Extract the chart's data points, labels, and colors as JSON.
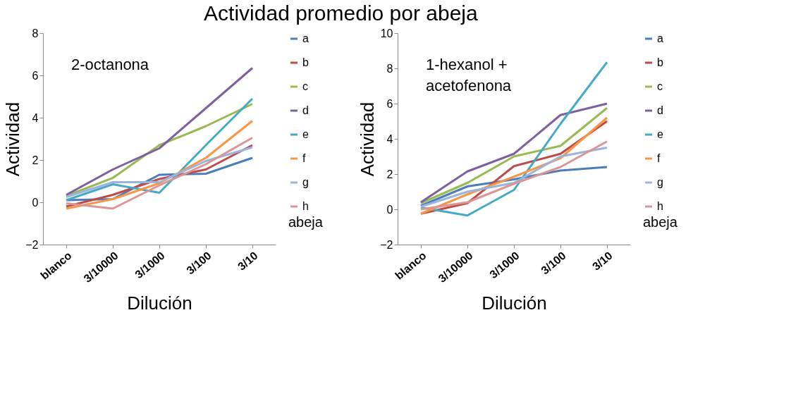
{
  "chart_data": [
    {
      "type": "line",
      "title": "Actividad promedio por abeja",
      "xlabel": "Dilución",
      "ylabel": "Actividad",
      "legend_title": "abeja",
      "annotations": [
        "2-octanona"
      ],
      "categories": [
        "blanco",
        "3/10000",
        "3/1000",
        "3/100",
        "3/10"
      ],
      "ylim": [
        -2,
        8
      ],
      "yticks": [
        -2,
        0,
        2,
        4,
        6,
        8
      ],
      "grid": false,
      "legend": "right",
      "line_style": "solid",
      "marker": "none",
      "series": [
        {
          "name": "a",
          "color": "#4a7ebb",
          "values": [
            0.1,
            0.15,
            1.3,
            1.35,
            2.1
          ]
        },
        {
          "name": "b",
          "color": "#be4b48",
          "values": [
            -0.2,
            0.35,
            1.1,
            1.55,
            2.7
          ]
        },
        {
          "name": "c",
          "color": "#98b954",
          "values": [
            0.3,
            1.15,
            2.7,
            3.6,
            4.65
          ]
        },
        {
          "name": "d",
          "color": "#7d60a0",
          "values": [
            0.35,
            1.55,
            2.55,
            4.45,
            6.35
          ]
        },
        {
          "name": "e",
          "color": "#46aac5",
          "values": [
            0.1,
            0.85,
            0.45,
            2.7,
            4.9
          ]
        },
        {
          "name": "f",
          "color": "#f79646",
          "values": [
            -0.3,
            0.15,
            0.9,
            2.1,
            3.85
          ]
        },
        {
          "name": "g",
          "color": "#9bb4dd",
          "values": [
            0.25,
            0.95,
            0.95,
            1.95,
            2.6
          ]
        },
        {
          "name": "h",
          "color": "#d99694",
          "values": [
            -0.05,
            -0.3,
            0.8,
            1.8,
            3.05
          ]
        }
      ]
    },
    {
      "type": "line",
      "xlabel": "Dilución",
      "ylabel": "Actividad",
      "legend_title": "abeja",
      "annotations": [
        "1-hexanol +\nacetofenona"
      ],
      "categories": [
        "blanco",
        "3/10000",
        "3/1000",
        "3/100",
        "3/10"
      ],
      "ylim": [
        -2,
        10
      ],
      "yticks": [
        -2,
        0,
        2,
        4,
        6,
        8,
        10
      ],
      "grid": false,
      "legend": "right",
      "line_style": "solid",
      "marker": "none",
      "series": [
        {
          "name": "a",
          "color": "#4a7ebb",
          "values": [
            0.2,
            1.3,
            1.7,
            2.2,
            2.4
          ]
        },
        {
          "name": "b",
          "color": "#be4b48",
          "values": [
            -0.25,
            0.35,
            2.45,
            3.15,
            5.0
          ]
        },
        {
          "name": "c",
          "color": "#98b954",
          "values": [
            0.35,
            1.5,
            3.0,
            3.6,
            5.75
          ]
        },
        {
          "name": "d",
          "color": "#7d60a0",
          "values": [
            0.4,
            2.15,
            3.15,
            5.35,
            6.0
          ]
        },
        {
          "name": "e",
          "color": "#46aac5",
          "values": [
            0.1,
            -0.35,
            1.1,
            4.85,
            8.35
          ]
        },
        {
          "name": "f",
          "color": "#f79646",
          "values": [
            -0.25,
            0.85,
            1.85,
            2.9,
            5.2
          ]
        },
        {
          "name": "g",
          "color": "#9bb4dd",
          "values": [
            0.15,
            1.0,
            1.5,
            3.0,
            3.5
          ]
        },
        {
          "name": "h",
          "color": "#d99694",
          "values": [
            0.0,
            0.4,
            1.45,
            2.4,
            3.85
          ]
        }
      ]
    }
  ]
}
